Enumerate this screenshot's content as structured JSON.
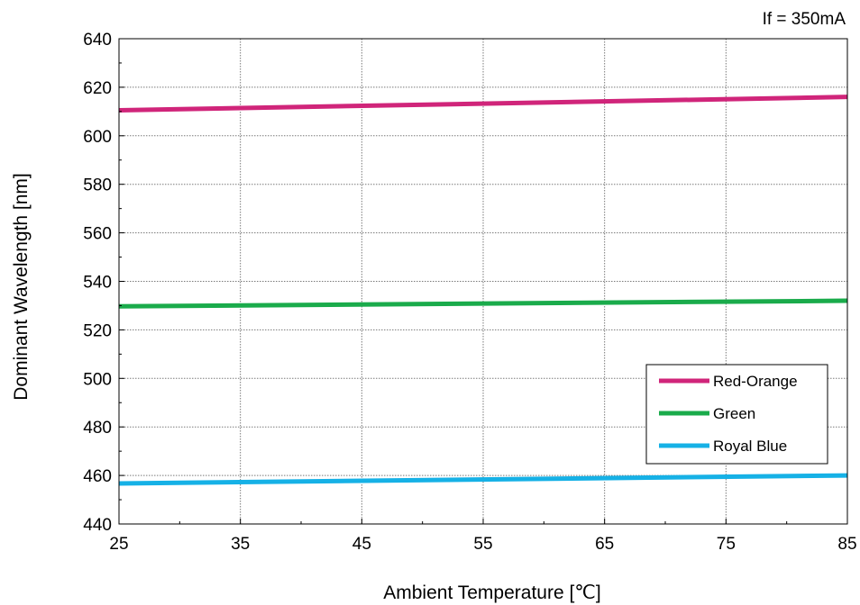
{
  "chart_data": {
    "type": "line",
    "title": "",
    "annotation": "If = 350mA",
    "xlabel": "Ambient Temperature [℃]",
    "ylabel": "Dominant  Wavelength [nm]",
    "xlim": [
      25,
      85
    ],
    "ylim": [
      440,
      640
    ],
    "x_ticks": [
      25,
      35,
      45,
      55,
      65,
      75,
      85
    ],
    "y_ticks": [
      440,
      460,
      480,
      500,
      520,
      540,
      560,
      580,
      600,
      620,
      640
    ],
    "grid": true,
    "legend_position": "lower-right",
    "x": [
      25,
      85
    ],
    "series": [
      {
        "name": "Red-Orange",
        "color": "#d0257a",
        "values": [
          610.5,
          616
        ]
      },
      {
        "name": "Green",
        "color": "#1aab4b",
        "values": [
          529.7,
          532
        ]
      },
      {
        "name": "Royal Blue",
        "color": "#16b1e6",
        "values": [
          456.7,
          460
        ]
      }
    ]
  }
}
